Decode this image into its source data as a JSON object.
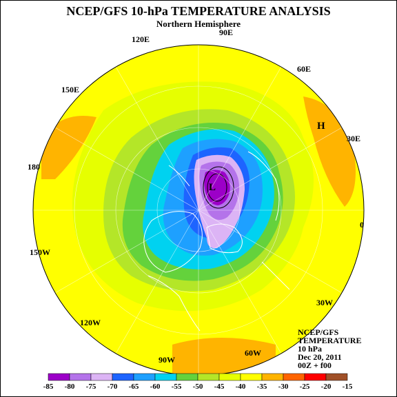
{
  "header": {
    "title": "NCEP/GFS 10-hPa TEMPERATURE ANALYSIS",
    "subtitle": "Northern Hemisphere"
  },
  "map": {
    "longitude_labels": [
      "90E",
      "120E",
      "60E",
      "150E",
      "30E",
      "180",
      "0",
      "150W",
      "30W",
      "120W",
      "90W",
      "60W"
    ],
    "markers": {
      "low": "L",
      "high": "H"
    }
  },
  "info_block": {
    "lines": [
      "NCEP/GFS",
      "TEMPERATURE",
      "10 hPa",
      "Dec 20, 2011",
      "00Z + f00"
    ]
  },
  "legend": {
    "labels": [
      "-85",
      "-80",
      "-75",
      "-70",
      "-65",
      "-60",
      "-55",
      "-50",
      "-45",
      "-40",
      "-35",
      "-30",
      "-25",
      "-20",
      "-15"
    ],
    "colors": [
      "#9c00c8",
      "#b473ea",
      "#dcb4f5",
      "#1e64ff",
      "#1ea0ff",
      "#00d2f0",
      "#64d23c",
      "#b4e628",
      "#e6ff00",
      "#ffff00",
      "#ffb400",
      "#ff6400",
      "#ff0000",
      "#a05028"
    ]
  },
  "colors": {
    "background": "#ffffff",
    "coast": "#ffffff"
  }
}
